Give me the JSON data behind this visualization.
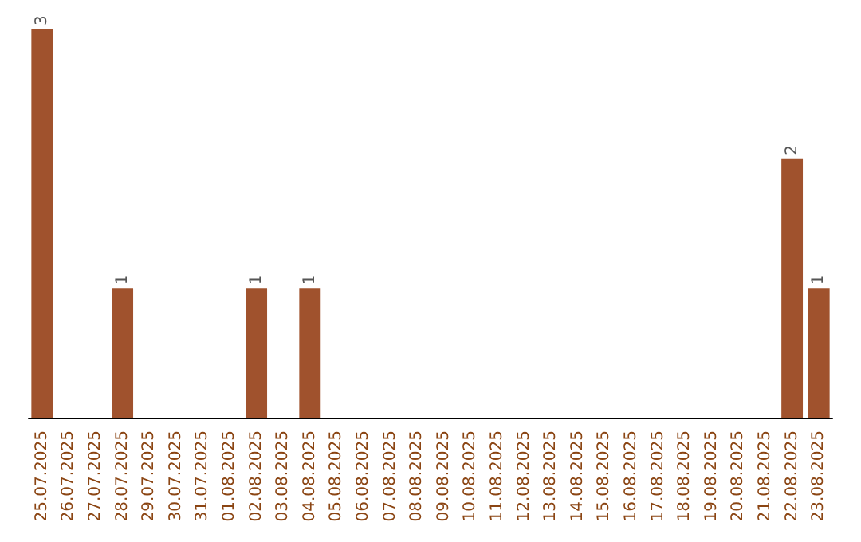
{
  "chart_data": {
    "type": "bar",
    "categories": [
      "25.07.2025",
      "26.07.2025",
      "27.07.2025",
      "28.07.2025",
      "29.07.2025",
      "30.07.2025",
      "31.07.2025",
      "01.08.2025",
      "02.08.2025",
      "03.08.2025",
      "04.08.2025",
      "05.08.2025",
      "06.08.2025",
      "07.08.2025",
      "08.08.2025",
      "09.08.2025",
      "10.08.2025",
      "11.08.2025",
      "12.08.2025",
      "13.08.2025",
      "14.08.2025",
      "15.08.2025",
      "16.08.2025",
      "17.08.2025",
      "18.08.2025",
      "19.08.2025",
      "20.08.2025",
      "21.08.2025",
      "22.08.2025",
      "23.08.2025"
    ],
    "values": [
      3,
      0,
      0,
      1,
      0,
      0,
      0,
      0,
      1,
      0,
      1,
      0,
      0,
      0,
      0,
      0,
      0,
      0,
      0,
      0,
      0,
      0,
      0,
      0,
      0,
      0,
      0,
      0,
      2,
      1
    ],
    "value_labels": [
      "3",
      null,
      null,
      "1",
      null,
      null,
      null,
      null,
      "1",
      null,
      "1",
      null,
      null,
      null,
      null,
      null,
      null,
      null,
      null,
      null,
      null,
      null,
      null,
      null,
      null,
      null,
      null,
      null,
      "2",
      "1"
    ],
    "color": "#a0522d"
  }
}
